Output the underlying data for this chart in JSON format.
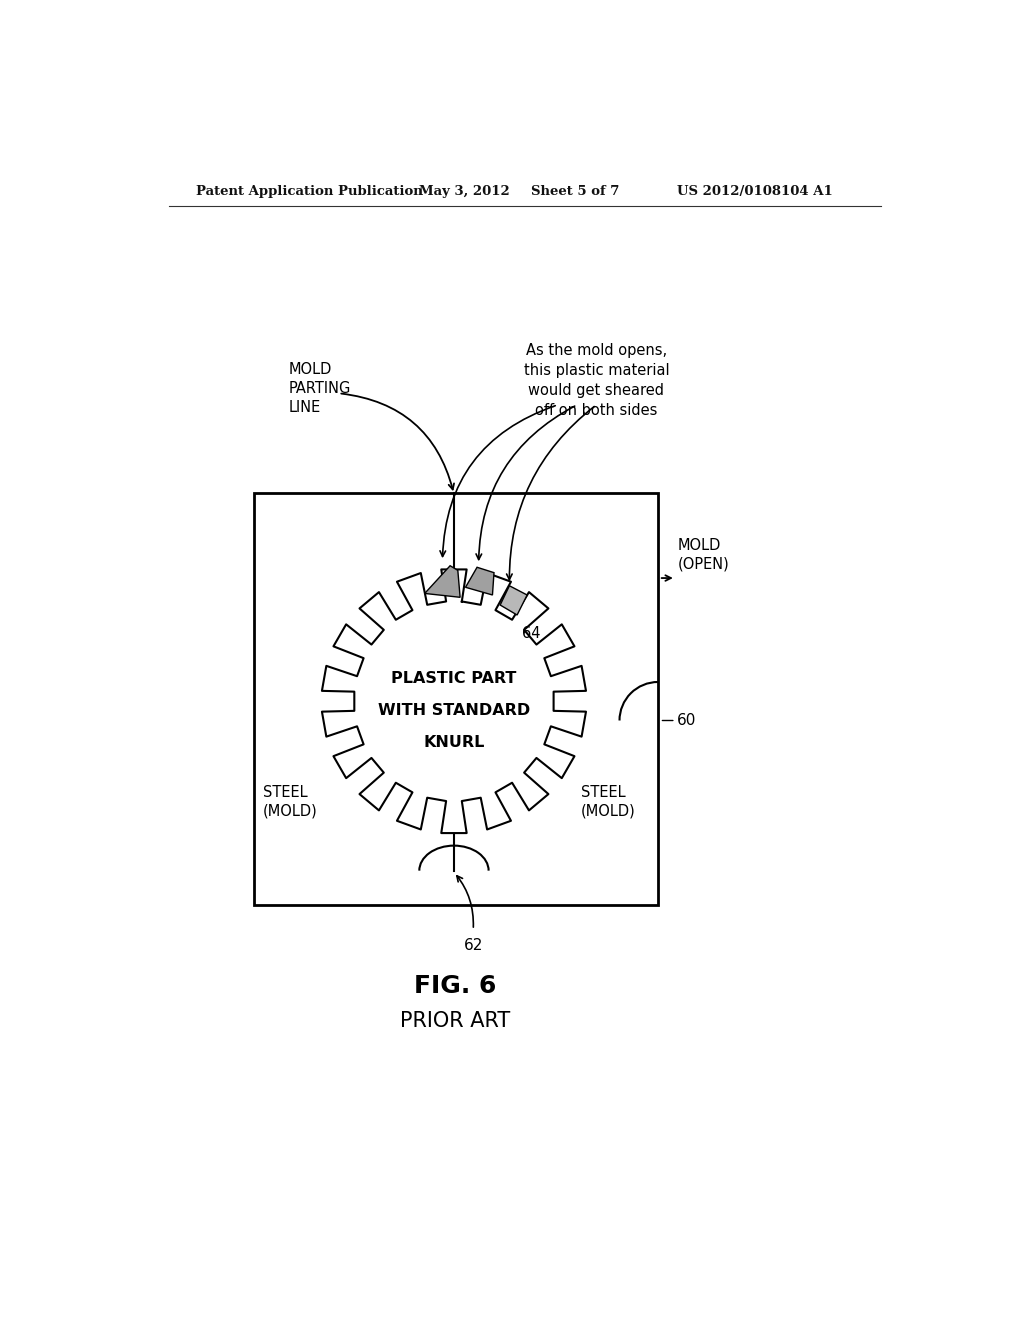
{
  "bg_color": "#ffffff",
  "header_text": "Patent Application Publication",
  "header_date": "May 3, 2012",
  "header_sheet": "Sheet 5 of 7",
  "header_patent": "US 2012/0108104 A1",
  "fig_label": "FIG. 6",
  "fig_sublabel": "PRIOR ART",
  "center_text_line1": "PLASTIC PART",
  "center_text_line2": "WITH STANDARD",
  "center_text_line3": "KNURL",
  "label_mold_parting": "MOLD\nPARTING\nLINE",
  "label_mold_open": "MOLD\n(OPEN)",
  "label_steel_left": "STEEL\n(MOLD)",
  "label_steel_right": "STEEL\n(MOLD)",
  "label_64": "64",
  "label_60": "60",
  "label_62": "62",
  "annotation_text": "As the mold opens,\nthis plastic material\nwould get sheared\noff on both sides"
}
